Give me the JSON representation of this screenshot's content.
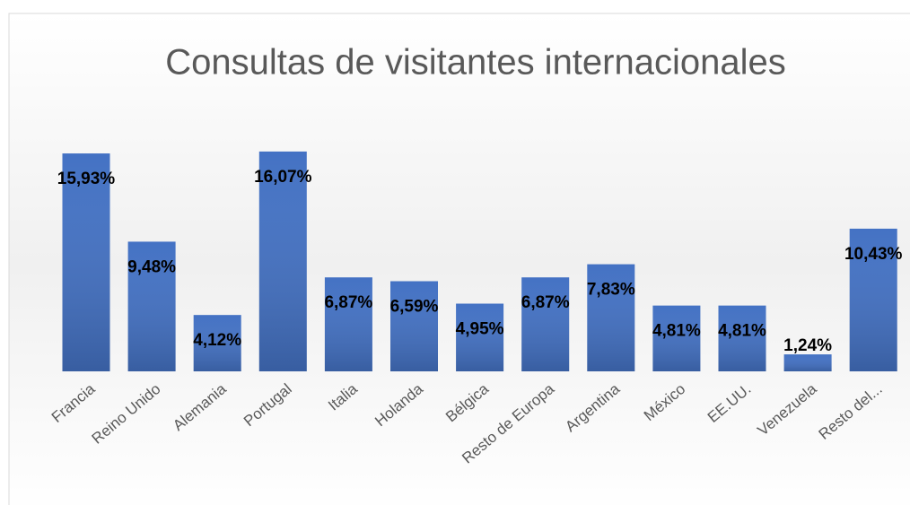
{
  "chart_data": {
    "type": "bar",
    "title": "Consultas de visitantes internacionales",
    "categories": [
      "Francia",
      "Reino Unido",
      "Alemania",
      "Portugal",
      "Italia",
      "Holanda",
      "Bélgica",
      "Resto de Europa",
      "Argentina",
      "México",
      "EE.UU.",
      "Venezuela",
      "Resto del..."
    ],
    "values": [
      15.93,
      9.48,
      4.12,
      16.07,
      6.87,
      6.59,
      4.95,
      6.87,
      7.83,
      4.81,
      4.81,
      1.24,
      10.43
    ],
    "value_labels": [
      "15,93%",
      "9,48%",
      "4,12%",
      "16,07%",
      "6,87%",
      "6,59%",
      "4,95%",
      "6,87%",
      "7,83%",
      "4,81%",
      "4,81%",
      "1,24%",
      "10,43%"
    ],
    "color": "#4472c4"
  }
}
